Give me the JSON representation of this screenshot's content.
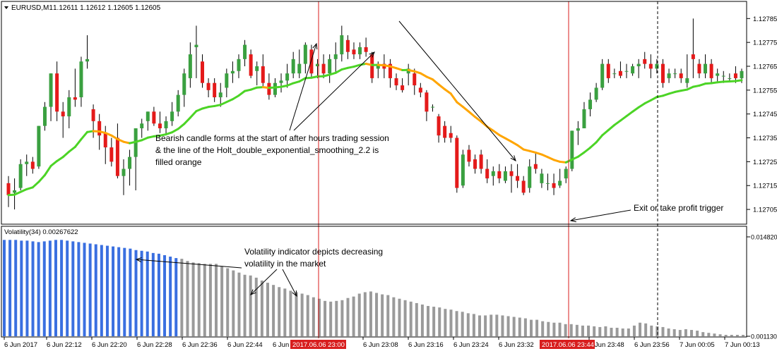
{
  "header": {
    "symbol": "EURUSD,M1",
    "ohlc": "1.12611 1.12612 1.12605 1.12605"
  },
  "indicator": {
    "label": "Volatility(34) 0.00267622"
  },
  "colors": {
    "bull": "#3aa040",
    "bear": "#e41a1a",
    "green_line": "#4cd426",
    "orange_line": "#ffa500",
    "vol_blue": "#3a6fe0",
    "vol_gray": "#9a9a9a",
    "marker": "#d81e1e",
    "frame": "#000000"
  },
  "annotations": [
    "Bearish candle forms at the start of after hours trading session",
    "& the line of the Holt_double_exponential_smoothing_2.2 is",
    "filled orange",
    "Exit or take profit trigger",
    "Volatility indicator depicts decreasing",
    "volatility in the market"
  ],
  "markers": [
    "2017.06.06 23:00",
    "2017.06.06 23:44"
  ],
  "chart_data": [
    {
      "type": "candlestick",
      "title": "EURUSD,M1",
      "price_ticks": [
        "1.12785",
        "1.12775",
        "1.12765",
        "1.12755",
        "1.12745",
        "1.12735",
        "1.12725",
        "1.12715",
        "1.12705"
      ],
      "ylim": [
        1.127,
        1.12791
      ],
      "time_ticks": [
        "6 Jun 2017",
        "6 Jun 22:12",
        "6 Jun 22:20",
        "6 Jun 22:28",
        "6 Jun 22:36",
        "6 Jun 22:44",
        "6 Jun 23:08",
        "6 Jun 23:16",
        "6 Jun 23:24",
        "6 Jun 23:32",
        "6 Jun 23:48",
        "6 Jun 23:56",
        "7 Jun 00:05",
        "7 Jun 00:13"
      ],
      "candles": [
        [
          1.12716,
          1.12719,
          1.12706,
          1.12711
        ],
        [
          1.12712,
          1.12718,
          1.12705,
          1.12713
        ],
        [
          1.12714,
          1.12726,
          1.12713,
          1.12724
        ],
        [
          1.12724,
          1.12728,
          1.12719,
          1.12725
        ],
        [
          1.12725,
          1.12727,
          1.1272,
          1.12722
        ],
        [
          1.12723,
          1.1274,
          1.12722,
          1.1274
        ],
        [
          1.1274,
          1.1275,
          1.12738,
          1.12748
        ],
        [
          1.12748,
          1.12762,
          1.12742,
          1.12762
        ],
        [
          1.12762,
          1.12767,
          1.12742,
          1.12746
        ],
        [
          1.12746,
          1.1275,
          1.12735,
          1.12744
        ],
        [
          1.12744,
          1.12755,
          1.12739,
          1.12752
        ],
        [
          1.12752,
          1.12764,
          1.12748,
          1.12751
        ],
        [
          1.12752,
          1.12769,
          1.12748,
          1.12767
        ],
        [
          1.12767,
          1.12778,
          1.12764,
          1.12768
        ],
        [
          1.12747,
          1.12749,
          1.12735,
          1.12742
        ],
        [
          1.12742,
          1.12745,
          1.1273,
          1.12736
        ],
        [
          1.12737,
          1.1274,
          1.12724,
          1.12731
        ],
        [
          1.12731,
          1.12735,
          1.12723,
          1.12725
        ],
        [
          1.12735,
          1.12741,
          1.12718,
          1.12719
        ],
        [
          1.12719,
          1.12726,
          1.12711,
          1.12722
        ],
        [
          1.12722,
          1.1273,
          1.12715,
          1.12727
        ],
        [
          1.12727,
          1.12739,
          1.12713,
          1.12739
        ],
        [
          1.12739,
          1.12743,
          1.12735,
          1.12741
        ],
        [
          1.12742,
          1.12746,
          1.12738,
          1.12746
        ],
        [
          1.12746,
          1.12748,
          1.1274,
          1.12741
        ],
        [
          1.12741,
          1.12746,
          1.12737,
          1.12739
        ],
        [
          1.12739,
          1.12744,
          1.12736,
          1.12742
        ],
        [
          1.12742,
          1.1275,
          1.1274,
          1.12746
        ],
        [
          1.12746,
          1.12755,
          1.12744,
          1.12753
        ],
        [
          1.12753,
          1.12764,
          1.12748,
          1.12762
        ],
        [
          1.1276,
          1.12775,
          1.12756,
          1.1277
        ],
        [
          1.12773,
          1.12782,
          1.1276,
          1.12774
        ],
        [
          1.12767,
          1.1277,
          1.12756,
          1.12758
        ],
        [
          1.12758,
          1.1276,
          1.12752,
          1.12755
        ],
        [
          1.12758,
          1.1276,
          1.1275,
          1.12752
        ],
        [
          1.12752,
          1.12758,
          1.12748,
          1.12754
        ],
        [
          1.12756,
          1.12764,
          1.12752,
          1.12762
        ],
        [
          1.12762,
          1.12767,
          1.12758,
          1.12763
        ],
        [
          1.12763,
          1.1277,
          1.1276,
          1.12768
        ],
        [
          1.12768,
          1.12776,
          1.12765,
          1.12774
        ],
        [
          1.1277,
          1.12772,
          1.1276,
          1.12761
        ],
        [
          1.12763,
          1.12767,
          1.12757,
          1.12765
        ],
        [
          1.12765,
          1.1277,
          1.12756,
          1.12758
        ],
        [
          1.12758,
          1.12762,
          1.12751,
          1.12753
        ],
        [
          1.12753,
          1.1276,
          1.12752,
          1.12758
        ],
        [
          1.12758,
          1.12762,
          1.12754,
          1.12759
        ],
        [
          1.12759,
          1.12766,
          1.12756,
          1.12762
        ],
        [
          1.12762,
          1.12771,
          1.1276,
          1.12768
        ],
        [
          1.12762,
          1.12772,
          1.1276,
          1.12766
        ],
        [
          1.12766,
          1.12775,
          1.12762,
          1.12774
        ],
        [
          1.12772,
          1.12774,
          1.1276,
          1.12762
        ],
        [
          1.12765,
          1.12768,
          1.1276,
          1.12766
        ],
        [
          1.12766,
          1.1277,
          1.1276,
          1.12762
        ],
        [
          1.12762,
          1.1277,
          1.12758,
          1.12768
        ],
        [
          1.12768,
          1.12775,
          1.12762,
          1.1277
        ],
        [
          1.1277,
          1.12782,
          1.12767,
          1.12778
        ],
        [
          1.12776,
          1.12778,
          1.12768,
          1.12771
        ],
        [
          1.12772,
          1.12775,
          1.12768,
          1.1277
        ],
        [
          1.1277,
          1.12775,
          1.12768,
          1.12773
        ],
        [
          1.12773,
          1.12777,
          1.12769,
          1.12771
        ],
        [
          1.1277,
          1.12771,
          1.12758,
          1.1276
        ],
        [
          1.12764,
          1.12767,
          1.1276,
          1.12766
        ],
        [
          1.12766,
          1.1277,
          1.1276,
          1.12764
        ],
        [
          1.12766,
          1.12768,
          1.12756,
          1.1276
        ],
        [
          1.1276,
          1.12762,
          1.12755,
          1.12757
        ],
        [
          1.12757,
          1.1276,
          1.12754,
          1.12755
        ],
        [
          1.12762,
          1.12766,
          1.12757,
          1.12764
        ],
        [
          1.12762,
          1.12764,
          1.12753,
          1.12757
        ],
        [
          1.12756,
          1.12758,
          1.12752,
          1.12754
        ],
        [
          1.12754,
          1.12755,
          1.12742,
          1.12746
        ],
        [
          1.12748,
          1.12749,
          1.12746,
          1.12748
        ],
        [
          1.12744,
          1.12745,
          1.12733,
          1.12736
        ],
        [
          1.1274,
          1.12742,
          1.12733,
          1.12735
        ],
        [
          1.12737,
          1.1274,
          1.12733,
          1.12735
        ],
        [
          1.12735,
          1.12736,
          1.12712,
          1.12714
        ],
        [
          1.12715,
          1.1273,
          1.12714,
          1.12728
        ],
        [
          1.1273,
          1.12732,
          1.12723,
          1.12725
        ],
        [
          1.12726,
          1.12728,
          1.1272,
          1.12722
        ],
        [
          1.12728,
          1.1273,
          1.1272,
          1.12722
        ],
        [
          1.12722,
          1.12726,
          1.12716,
          1.12718
        ],
        [
          1.12719,
          1.12723,
          1.12715,
          1.12721
        ],
        [
          1.12721,
          1.12724,
          1.12716,
          1.12718
        ],
        [
          1.12717,
          1.12723,
          1.12716,
          1.12721
        ],
        [
          1.12721,
          1.12724,
          1.12712,
          1.12719
        ],
        [
          1.12719,
          1.12724,
          1.12714,
          1.12717
        ],
        [
          1.12717,
          1.12719,
          1.12711,
          1.12712
        ],
        [
          1.12714,
          1.12726,
          1.12712,
          1.12723
        ],
        [
          1.12724,
          1.12729,
          1.1272,
          1.12722
        ],
        [
          1.12716,
          1.12722,
          1.12714,
          1.1272
        ],
        [
          1.12716,
          1.1272,
          1.12713,
          1.12716
        ],
        [
          1.12716,
          1.1272,
          1.12711,
          1.12714
        ],
        [
          1.12715,
          1.12722,
          1.12714,
          1.12717
        ],
        [
          1.12718,
          1.12723,
          1.12716,
          1.12722
        ],
        [
          1.12722,
          1.12738,
          1.12721,
          1.12738
        ],
        [
          1.12738,
          1.12742,
          1.12732,
          1.12739
        ],
        [
          1.12739,
          1.1275,
          1.12739,
          1.12747
        ],
        [
          1.12747,
          1.12754,
          1.12744,
          1.12751
        ],
        [
          1.12751,
          1.12758,
          1.1275,
          1.12756
        ],
        [
          1.12756,
          1.12768,
          1.12755,
          1.12766
        ],
        [
          1.12766,
          1.12768,
          1.12758,
          1.1276
        ],
        [
          1.12762,
          1.12764,
          1.1276,
          1.12762
        ],
        [
          1.12763,
          1.12767,
          1.1276,
          1.12761
        ],
        [
          1.12763,
          1.12766,
          1.1276,
          1.12763
        ],
        [
          1.12762,
          1.12766,
          1.12761,
          1.12765
        ],
        [
          1.12765,
          1.12768,
          1.1276,
          1.12766
        ],
        [
          1.12768,
          1.12771,
          1.12764,
          1.12766
        ],
        [
          1.12766,
          1.1277,
          1.1276,
          1.12764
        ],
        [
          1.12764,
          1.12768,
          1.12762,
          1.12766
        ],
        [
          1.12766,
          1.12768,
          1.12756,
          1.12758
        ],
        [
          1.1276,
          1.12764,
          1.12758,
          1.12762
        ],
        [
          1.12762,
          1.12764,
          1.1276,
          1.12762
        ],
        [
          1.12762,
          1.12764,
          1.12758,
          1.1276
        ],
        [
          1.12758,
          1.1277,
          1.12756,
          1.1276
        ],
        [
          1.1277,
          1.12785,
          1.1276,
          1.12768
        ],
        [
          1.12766,
          1.12768,
          1.1276,
          1.12762
        ],
        [
          1.12762,
          1.1277,
          1.1276,
          1.12766
        ],
        [
          1.12766,
          1.12768,
          1.12758,
          1.1276
        ],
        [
          1.12761,
          1.12764,
          1.12758,
          1.12762
        ],
        [
          1.12761,
          1.12763,
          1.12758,
          1.12761
        ],
        [
          1.1276,
          1.12762,
          1.12759,
          1.1276
        ],
        [
          1.12762,
          1.12765,
          1.12758,
          1.1276
        ],
        [
          1.1276,
          1.12764,
          1.12758,
          1.12763
        ]
      ],
      "series": [
        {
          "name": "Holt_double_exponential_smoothing_2.2",
          "values": []
        }
      ]
    },
    {
      "type": "bar",
      "title": "Volatility(34) 0.00267622",
      "ylim": [
        0.00113,
        0.01482
      ],
      "ticks": [
        "0.014820",
        "0.001130"
      ],
      "values": [
        0.0144,
        0.0144,
        0.0144,
        0.0143,
        0.0143,
        0.0142,
        0.0141,
        0.0142,
        0.0143,
        0.0144,
        0.0144,
        0.0143,
        0.0142,
        0.0141,
        0.014,
        0.0139,
        0.0138,
        0.0137,
        0.0136,
        0.0135,
        0.0134,
        0.0133,
        0.0132,
        0.013,
        0.0129,
        0.0128,
        0.0126,
        0.0125,
        0.0123,
        0.0121,
        0.0119,
        0.0118,
        0.0115,
        0.0113,
        0.0112,
        0.0111,
        0.0111,
        0.0111,
        0.0108,
        0.0105,
        0.0102,
        0.0099,
        0.0096,
        0.0095,
        0.0092,
        0.0088,
        0.0085,
        0.0082,
        0.0079,
        0.0077,
        0.0074,
        0.0072,
        0.007,
        0.0068,
        0.0065,
        0.0063,
        0.006,
        0.0059,
        0.006,
        0.0061,
        0.0064,
        0.0066,
        0.007,
        0.0072,
        0.0073,
        0.0071,
        0.0069,
        0.0068,
        0.0065,
        0.0063,
        0.0061,
        0.0059,
        0.0057,
        0.0055,
        0.0053,
        0.0052,
        0.0051,
        0.0049,
        0.0048,
        0.0046,
        0.0045,
        0.0043,
        0.0042,
        0.004,
        0.004,
        0.0041,
        0.0041,
        0.004,
        0.0039,
        0.0038,
        0.0037,
        0.0036,
        0.0034,
        0.0034,
        0.0032,
        0.0031,
        0.003,
        0.003,
        0.0028,
        0.0028,
        0.0027,
        0.0026,
        0.0026,
        0.0025,
        0.0024,
        0.0025,
        0.0023,
        0.0023,
        0.0022,
        0.0022,
        0.0026,
        0.003,
        0.0029,
        0.0026,
        0.0025,
        0.0024,
        0.0022,
        0.0021,
        0.002,
        0.0021,
        0.002,
        0.0019,
        0.0017,
        0.0016,
        0.0015,
        0.0014,
        0.0013,
        0.0013,
        0.0013,
        0.0013
      ]
    }
  ]
}
